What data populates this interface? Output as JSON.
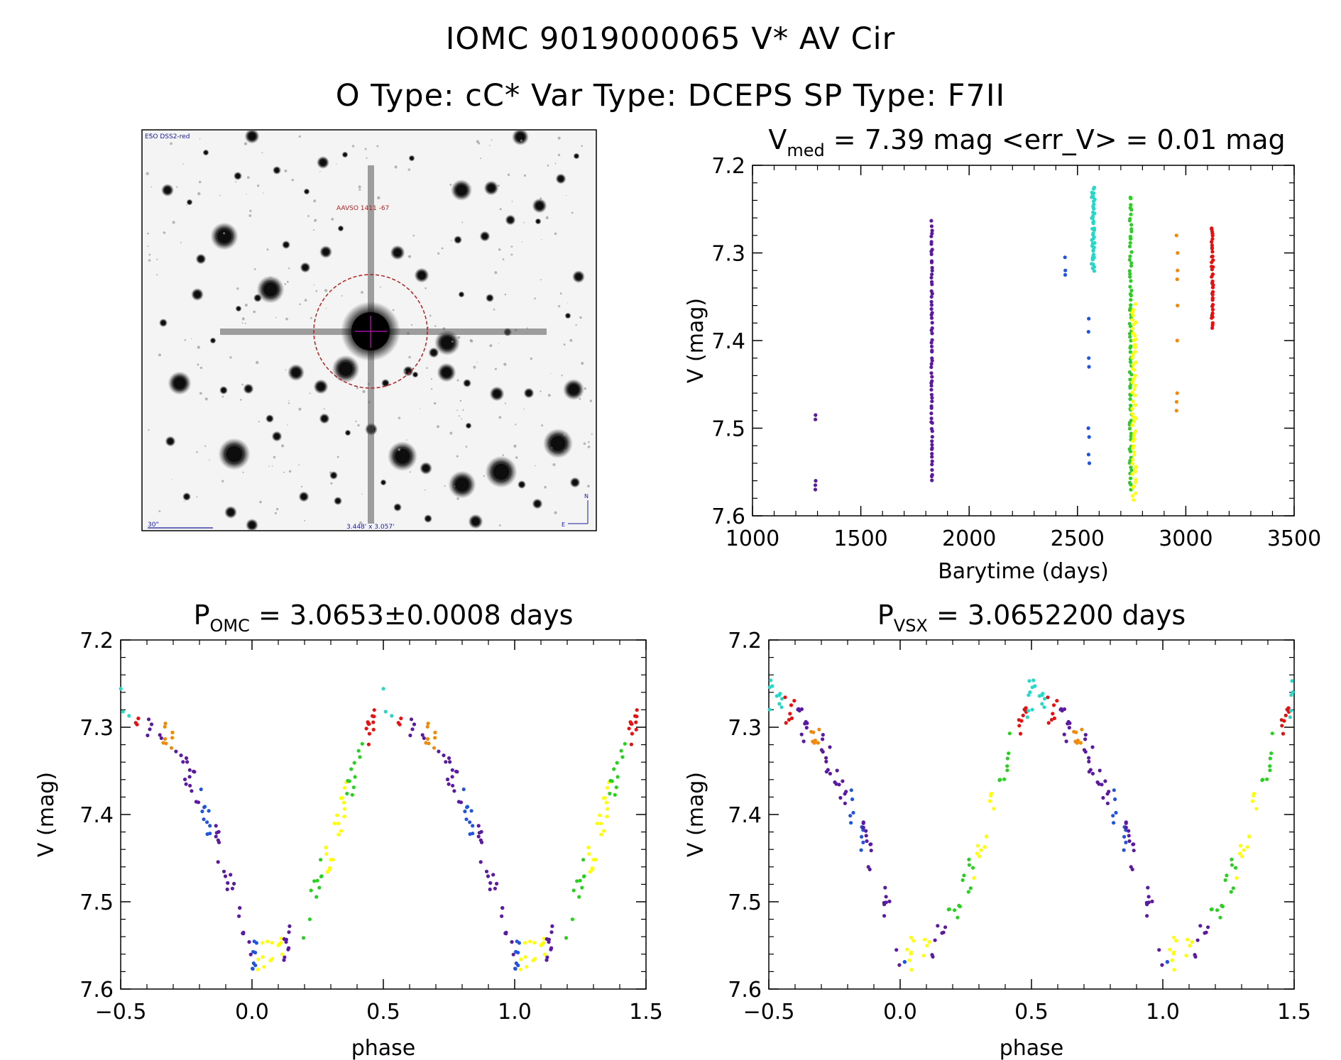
{
  "header": {
    "title_line1": "IOMC 9019000065    V* AV Cir",
    "title_line2": "O Type: cC*  Var Type: DCEPS  SP Type: F7II"
  },
  "image_panel": {
    "top_left_label": "ESO DSS2-red",
    "target_label": "AAVSO 1411 -67",
    "scale_label": "30\"",
    "size_label": "3.448' x 3.057'",
    "compass_n": "N",
    "compass_e": "E"
  },
  "chart_data": [
    {
      "type": "scatter",
      "title": "V_med = 7.39 mag <err_V> = 0.01 mag",
      "title_parts": {
        "main": "V",
        "sub": "med",
        "rest": " = 7.39 mag <err_V> = 0.01 mag"
      },
      "xlabel": "Barytime (days)",
      "ylabel": "V (mag)",
      "xlim": [
        1000,
        3500
      ],
      "ylim": [
        7.6,
        7.2
      ],
      "xticks": [
        "1000",
        "1500",
        "2000",
        "2500",
        "3000",
        "3500"
      ],
      "yticks": [
        "7.2",
        "7.3",
        "7.4",
        "7.5",
        "7.6"
      ],
      "groups": [
        {
          "color": "#5b1aa0",
          "x_ranges": [
            [
              1290,
              1292
            ]
          ],
          "y": [
            7.485,
            7.49,
            7.56,
            7.565,
            7.57
          ]
        },
        {
          "color": "#5b1aa0",
          "x_ranges": [
            [
              1825,
              1830
            ]
          ],
          "y_range": [
            7.265,
            7.56
          ],
          "n": 70
        },
        {
          "color": "#2255dd",
          "x_ranges": [
            [
              2440,
              2444
            ]
          ],
          "y": [
            7.305,
            7.32,
            7.325
          ]
        },
        {
          "color": "#2255dd",
          "x_ranges": [
            [
              2550,
              2555
            ]
          ],
          "y": [
            7.375,
            7.39,
            7.42,
            7.43,
            7.5,
            7.51,
            7.53,
            7.54
          ]
        },
        {
          "color": "#25d8c8",
          "x_ranges": [
            [
              2565,
              2580
            ]
          ],
          "y_range": [
            7.225,
            7.32
          ],
          "n": 45
        },
        {
          "color": "#2ad021",
          "x_ranges": [
            [
              2740,
              2750
            ]
          ],
          "y_range": [
            7.235,
            7.57
          ],
          "n": 80
        },
        {
          "color": "#ffff00",
          "x_ranges": [
            [
              2752,
              2770
            ]
          ],
          "y_range": [
            7.36,
            7.58
          ],
          "n": 60
        },
        {
          "color": "#f08a0a",
          "x_ranges": [
            [
              2955,
              2962
            ]
          ],
          "y": [
            7.28,
            7.3,
            7.32,
            7.33,
            7.36,
            7.4,
            7.46,
            7.47,
            7.48
          ]
        },
        {
          "color": "#e81010",
          "x_ranges": [
            [
              3118,
              3126
            ]
          ],
          "y_range": [
            7.27,
            7.385
          ],
          "n": 40
        }
      ]
    },
    {
      "type": "scatter",
      "title": "P_OMC = 3.0653±0.0008 days",
      "title_parts": {
        "main": "P",
        "sub": "OMC",
        "rest": " = 3.0653±0.0008 days"
      },
      "xlabel": "phase",
      "ylabel": "V (mag)",
      "xlim": [
        -0.5,
        1.5
      ],
      "ylim": [
        7.6,
        7.2
      ],
      "period": 3.0653,
      "xticks": [
        "−0.5",
        "0.0",
        "0.5",
        "1.0",
        "1.5"
      ],
      "yticks": [
        "7.2",
        "7.3",
        "7.4",
        "7.5",
        "7.6"
      ],
      "curve": [
        [
          0.0,
          7.56
        ],
        [
          0.1,
          7.56
        ],
        [
          0.2,
          7.52
        ],
        [
          0.3,
          7.44
        ],
        [
          0.4,
          7.34
        ],
        [
          0.5,
          7.26
        ],
        [
          0.6,
          7.29
        ],
        [
          0.7,
          7.32
        ],
        [
          0.8,
          7.38
        ],
        [
          0.9,
          7.46
        ],
        [
          1.0,
          7.56
        ]
      ]
    },
    {
      "type": "scatter",
      "title": "P_VSX = 3.0652200 days",
      "title_parts": {
        "main": "P",
        "sub": "VSX",
        "rest": " = 3.0652200 days"
      },
      "xlabel": "phase",
      "ylabel": "V (mag)",
      "xlim": [
        -0.5,
        1.5
      ],
      "ylim": [
        7.6,
        7.2
      ],
      "period": 3.06522,
      "xticks": [
        "−0.5",
        "0.0",
        "0.5",
        "1.0",
        "1.5"
      ],
      "yticks": [
        "7.2",
        "7.3",
        "7.4",
        "7.5",
        "7.6"
      ],
      "curve": [
        [
          0.0,
          7.56
        ],
        [
          0.1,
          7.56
        ],
        [
          0.2,
          7.52
        ],
        [
          0.3,
          7.44
        ],
        [
          0.4,
          7.34
        ],
        [
          0.5,
          7.26
        ],
        [
          0.6,
          7.29
        ],
        [
          0.7,
          7.32
        ],
        [
          0.8,
          7.38
        ],
        [
          0.9,
          7.46
        ],
        [
          1.0,
          7.56
        ]
      ]
    }
  ],
  "phase_colors": [
    {
      "from": -0.05,
      "to": 0.02,
      "color": "#2255dd"
    },
    {
      "from": 0.02,
      "to": 0.12,
      "color": "#ffff00"
    },
    {
      "from": 0.12,
      "to": 0.18,
      "color": "#5b1aa0"
    },
    {
      "from": 0.18,
      "to": 0.28,
      "color": "#2ad021"
    },
    {
      "from": 0.28,
      "to": 0.36,
      "color": "#ffff00"
    },
    {
      "from": 0.36,
      "to": 0.43,
      "color": "#2ad021"
    },
    {
      "from": 0.43,
      "to": 0.48,
      "color": "#e81010"
    },
    {
      "from": 0.48,
      "to": 0.55,
      "color": "#25d8c8"
    },
    {
      "from": 0.55,
      "to": 0.6,
      "color": "#e81010"
    },
    {
      "from": 0.6,
      "to": 0.66,
      "color": "#5b1aa0"
    },
    {
      "from": 0.66,
      "to": 0.7,
      "color": "#f08a0a"
    },
    {
      "from": 0.7,
      "to": 0.8,
      "color": "#5b1aa0"
    },
    {
      "from": 0.8,
      "to": 0.86,
      "color": "#2255dd"
    },
    {
      "from": 0.86,
      "to": 0.95,
      "color": "#5b1aa0"
    }
  ]
}
